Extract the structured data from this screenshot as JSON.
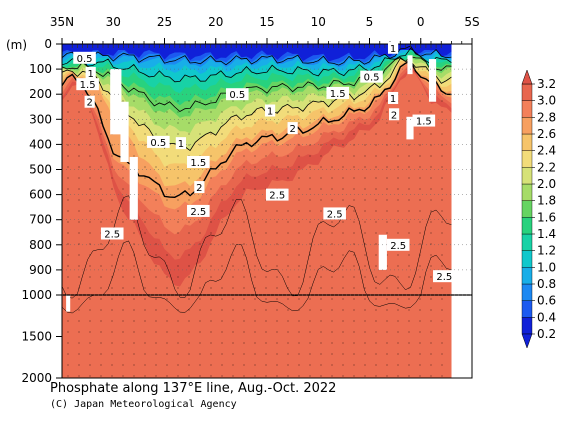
{
  "chart_data": {
    "type": "heatmap",
    "title": "Phosphate along 137°E line, Aug.-Oct. 2022",
    "credit": "(C) Japan Meteorological Agency",
    "x_axis": {
      "ticks": [
        "35N",
        "30",
        "25",
        "20",
        "15",
        "10",
        "5",
        "0",
        "5S"
      ],
      "tick_values": [
        35,
        30,
        25,
        20,
        15,
        10,
        5,
        0,
        -5
      ],
      "range": [
        35,
        -5
      ]
    },
    "y_axis": {
      "unit": "(m)",
      "ticks_upper": [
        "0",
        "100",
        "200",
        "300",
        "400",
        "500",
        "600",
        "700",
        "800",
        "900",
        "1000"
      ],
      "tick_values_upper": [
        0,
        100,
        200,
        300,
        400,
        500,
        600,
        700,
        800,
        900,
        1000
      ],
      "ticks_lower": [
        "1500",
        "2000"
      ],
      "tick_values_lower": [
        1500,
        2000
      ],
      "range": [
        0,
        2000
      ],
      "scale_break_at": 1000
    },
    "colorbar": {
      "labels": [
        "0.2",
        "0.4",
        "0.6",
        "0.8",
        "1.0",
        "1.2",
        "1.4",
        "1.6",
        "1.8",
        "2.0",
        "2.2",
        "2.4",
        "2.6",
        "2.8",
        "3.0",
        "3.2"
      ],
      "colors": [
        "#1020d8",
        "#1c5af0",
        "#1c88f2",
        "#18aee8",
        "#10c8cc",
        "#18d2a6",
        "#28d27e",
        "#66d462",
        "#a6dc68",
        "#d6e278",
        "#f2dc7a",
        "#f6c46a",
        "#f7a060",
        "#f3805a",
        "#e8664e",
        "#de5246"
      ]
    },
    "contour_labels": [
      {
        "text": "0.5",
        "lat": 32.8,
        "depth": 55
      },
      {
        "text": "1",
        "lat": 32.2,
        "depth": 115
      },
      {
        "text": "1.5",
        "lat": 32.5,
        "depth": 160
      },
      {
        "text": "2",
        "lat": 32.3,
        "depth": 230
      },
      {
        "text": "2.5",
        "lat": 30.1,
        "depth": 755
      },
      {
        "text": "0.5",
        "lat": 25.6,
        "depth": 390
      },
      {
        "text": "1",
        "lat": 23.4,
        "depth": 395
      },
      {
        "text": "1.5",
        "lat": 21.7,
        "depth": 470
      },
      {
        "text": "2",
        "lat": 21.6,
        "depth": 570
      },
      {
        "text": "2.5",
        "lat": 21.7,
        "depth": 665
      },
      {
        "text": "0.5",
        "lat": 17.9,
        "depth": 200
      },
      {
        "text": "1",
        "lat": 14.7,
        "depth": 265
      },
      {
        "text": "2",
        "lat": 12.5,
        "depth": 335
      },
      {
        "text": "2.5",
        "lat": 14.0,
        "depth": 600
      },
      {
        "text": "1.5",
        "lat": 8.1,
        "depth": 195
      },
      {
        "text": "2.5",
        "lat": 8.4,
        "depth": 675
      },
      {
        "text": "0.5",
        "lat": 4.8,
        "depth": 130
      },
      {
        "text": "1",
        "lat": 2.7,
        "depth": 215
      },
      {
        "text": "2",
        "lat": 2.6,
        "depth": 280
      },
      {
        "text": "1.5",
        "lat": -0.3,
        "depth": 305
      },
      {
        "text": "1",
        "lat": 2.7,
        "depth": 15
      },
      {
        "text": "2.5",
        "lat": 2.2,
        "depth": 800
      },
      {
        "text": "2.5",
        "lat": -2.3,
        "depth": 925
      }
    ]
  }
}
